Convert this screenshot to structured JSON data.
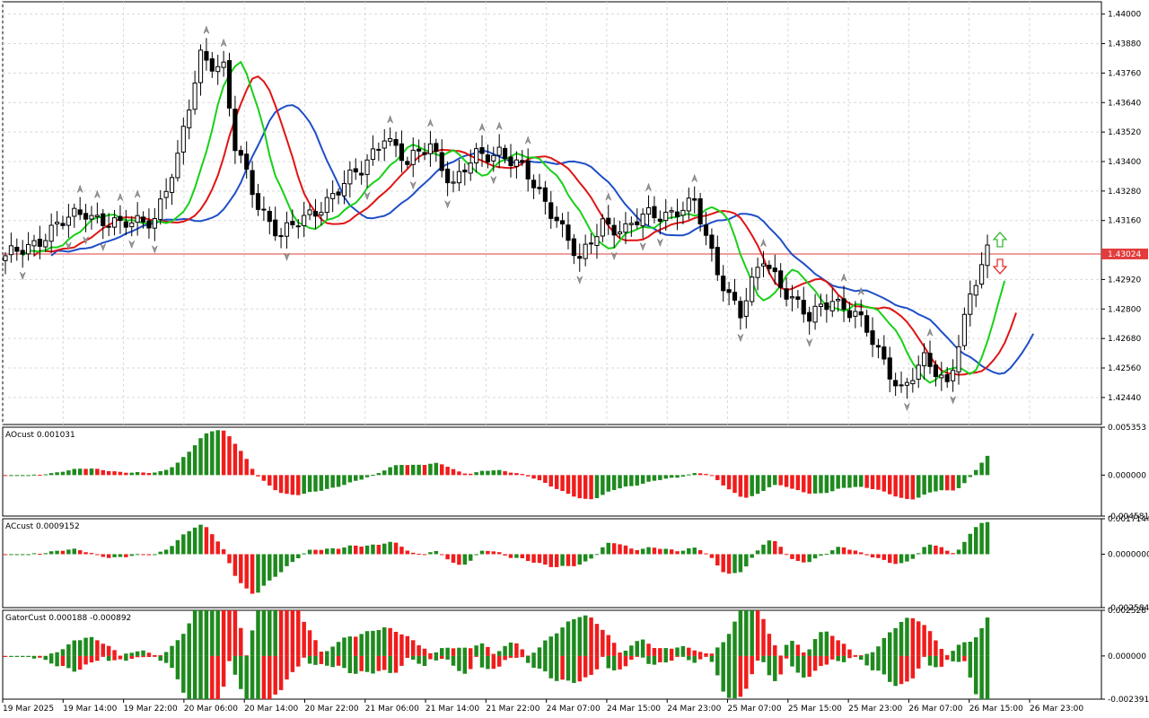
{
  "chart_data": {
    "type": "candlestick",
    "symbol_price_label": "1.43024",
    "colors": {
      "bull_candle": "#ffffff",
      "bear_candle": "#000000",
      "jaw": "#1f4fc7",
      "teeth": "#e01414",
      "lips": "#18d018",
      "osc_up": "#1e8a1e",
      "osc_down": "#f01c1c",
      "price_line": "#e23c3c",
      "grid": "#d9d9d9"
    },
    "price_ticks": [
      "1.44000",
      "1.43880",
      "1.43760",
      "1.43640",
      "1.43520",
      "1.43400",
      "1.43280",
      "1.43160",
      "1.42920",
      "1.42800",
      "1.42680",
      "1.42560",
      "1.42440"
    ],
    "price_range": [
      1.4233,
      1.4405
    ],
    "time_labels": [
      "19 Mar 2025",
      "19 Mar 14:00",
      "19 Mar 22:00",
      "20 Mar 06:00",
      "20 Mar 14:00",
      "20 Mar 22:00",
      "21 Mar 06:00",
      "21 Mar 14:00",
      "21 Mar 22:00",
      "24 Mar 07:00",
      "24 Mar 15:00",
      "24 Mar 23:00",
      "25 Mar 07:00",
      "25 Mar 15:00",
      "25 Mar 23:00",
      "26 Mar 07:00",
      "26 Mar 15:00",
      "26 Mar 23:00"
    ],
    "close_anchors": [
      [
        0,
        1.43
      ],
      [
        8,
        1.4312
      ],
      [
        14,
        1.432
      ],
      [
        20,
        1.4313
      ],
      [
        26,
        1.4318
      ],
      [
        30,
        1.434
      ],
      [
        34,
        1.4384
      ],
      [
        38,
        1.4378
      ],
      [
        40,
        1.4345
      ],
      [
        44,
        1.4323
      ],
      [
        48,
        1.431
      ],
      [
        52,
        1.4316
      ],
      [
        56,
        1.4325
      ],
      [
        62,
        1.4336
      ],
      [
        66,
        1.4352
      ],
      [
        70,
        1.4338
      ],
      [
        74,
        1.4348
      ],
      [
        78,
        1.433
      ],
      [
        82,
        1.4342
      ],
      [
        86,
        1.4345
      ],
      [
        90,
        1.4336
      ],
      [
        96,
        1.4318
      ],
      [
        100,
        1.4298
      ],
      [
        104,
        1.4316
      ],
      [
        108,
        1.4312
      ],
      [
        112,
        1.4318
      ],
      [
        116,
        1.432
      ],
      [
        120,
        1.4322
      ],
      [
        124,
        1.4296
      ],
      [
        128,
        1.4278
      ],
      [
        132,
        1.43
      ],
      [
        136,
        1.4288
      ],
      [
        140,
        1.4275
      ],
      [
        144,
        1.4285
      ],
      [
        148,
        1.4278
      ],
      [
        152,
        1.4262
      ],
      [
        156,
        1.4248
      ],
      [
        160,
        1.4258
      ],
      [
        164,
        1.425
      ],
      [
        168,
        1.4285
      ],
      [
        171,
        1.4302
      ]
    ],
    "osc_panels": [
      {
        "label": "AOcust 0.001031",
        "ticks": [
          "0.005353",
          "0.000000",
          "-0.004581"
        ],
        "range": [
          -0.004581,
          0.005353
        ]
      },
      {
        "label": "ACcust 0.0009152",
        "ticks": [
          "0.0017144",
          "0.0000000",
          "-0.0025848"
        ],
        "range": [
          -0.0025848,
          0.0017144
        ]
      },
      {
        "label": "GatorCust 0.000188 -0.000892",
        "ticks": [
          "0.002528",
          "0.000000",
          "-0.002391"
        ],
        "range": [
          -0.002391,
          0.002528
        ]
      }
    ]
  }
}
